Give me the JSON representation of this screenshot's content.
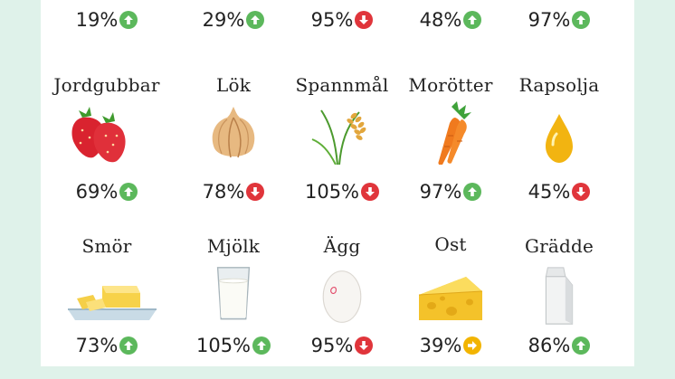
{
  "colors": {
    "up": "#5cb85c",
    "down": "#e0353b",
    "neutral": "#f2b400",
    "background": "#dff2ea"
  },
  "top_row": [
    {
      "percent": "19%",
      "trend": "up"
    },
    {
      "percent": "29%",
      "trend": "up"
    },
    {
      "percent": "95%",
      "trend": "down"
    },
    {
      "percent": "48%",
      "trend": "up"
    },
    {
      "percent": "97%",
      "trend": "up"
    }
  ],
  "rows": [
    [
      {
        "label": "Jordgubbar",
        "percent": "69%",
        "trend": "up",
        "icon": "strawberry-icon"
      },
      {
        "label": "Lök",
        "percent": "78%",
        "trend": "down",
        "icon": "onion-icon"
      },
      {
        "label": "Spannmål",
        "percent": "105%",
        "trend": "down",
        "icon": "grain-icon"
      },
      {
        "label": "Morötter",
        "percent": "97%",
        "trend": "up",
        "icon": "carrot-icon"
      },
      {
        "label": "Rapsolja",
        "percent": "45%",
        "trend": "down",
        "icon": "oil-drop-icon"
      }
    ],
    [
      {
        "label": "Smör",
        "percent": "73%",
        "trend": "up",
        "icon": "butter-icon"
      },
      {
        "label": "Mjölk",
        "percent": "105%",
        "trend": "up",
        "icon": "milk-glass-icon"
      },
      {
        "label": "Ägg",
        "percent": "95%",
        "trend": "down",
        "icon": "egg-icon"
      },
      {
        "label": "Ost",
        "percent": "39%",
        "trend": "neutral",
        "icon": "cheese-icon"
      },
      {
        "label": "Grädde",
        "percent": "86%",
        "trend": "up",
        "icon": "cream-carton-icon"
      }
    ]
  ]
}
